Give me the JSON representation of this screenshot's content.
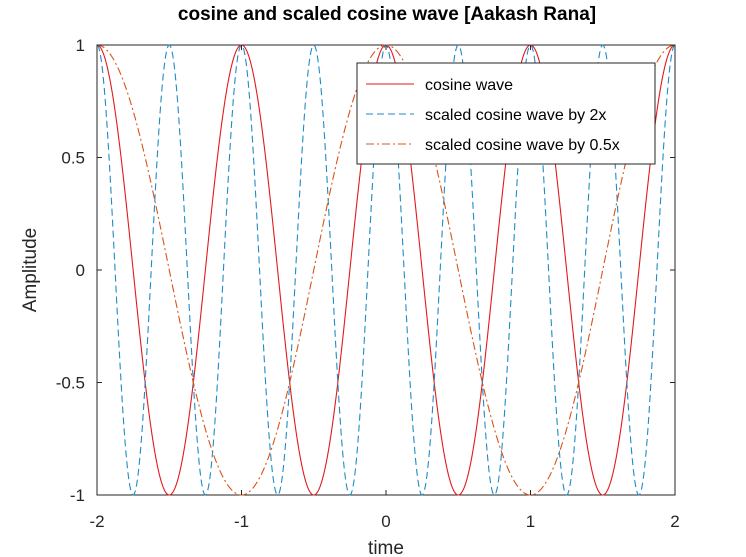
{
  "chart_data": {
    "type": "line",
    "title": "cosine and scaled cosine wave [Aakash Rana]",
    "xlabel": "time",
    "ylabel": "Amplitude",
    "xlim": [
      -2,
      2
    ],
    "ylim": [
      -1,
      1
    ],
    "xticks": [
      -2,
      -1,
      0,
      1,
      2
    ],
    "xtick_labels": [
      "-2",
      "-1",
      "0",
      "1",
      "2"
    ],
    "yticks": [
      -1,
      -0.5,
      0,
      0.5,
      1
    ],
    "ytick_labels": [
      "-1",
      "-0.5",
      "0",
      "0.5",
      "1"
    ],
    "grid": false,
    "legend_position": "top-right",
    "series": [
      {
        "name": "cosine wave",
        "function": "cos(2*pi*f*t)",
        "frequency": 1,
        "color": "#e31a1c",
        "dash": "solid"
      },
      {
        "name": "scaled cosine wave by 2x",
        "function": "cos(2*pi*2f*t)",
        "frequency": 2,
        "color": "#1f8bc7",
        "dash": "dashed"
      },
      {
        "name": "scaled cosine wave by 0.5x",
        "function": "cos(2*pi*0.5f*t)",
        "frequency": 0.5,
        "color": "#d95319",
        "dash": "dashdot"
      }
    ]
  }
}
